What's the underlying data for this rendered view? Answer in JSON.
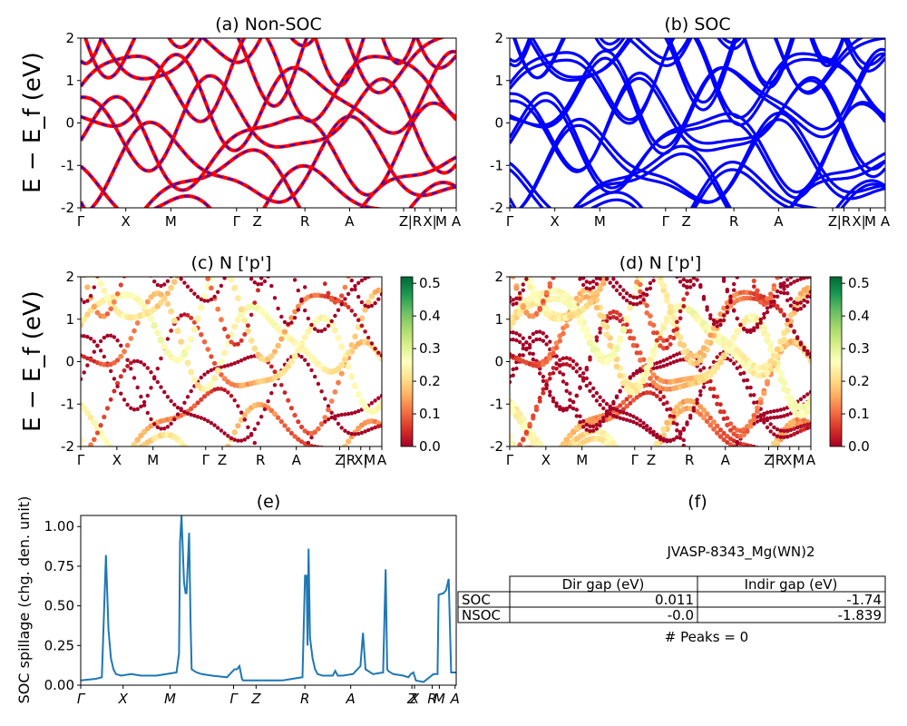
{
  "chart_data": [
    {
      "id": "a",
      "type": "line",
      "title": "(a) Non-SOC",
      "ylabel": "E − E_f (eV)",
      "ylim": [
        -2,
        2
      ],
      "yticks": [
        "-2",
        "-1",
        "0",
        "1",
        "2"
      ],
      "kpath_labels": [
        "Γ",
        "X",
        "M",
        "Γ",
        "Z",
        "R",
        "A",
        "Z",
        "|R",
        "X|",
        "M",
        "A"
      ],
      "series": [
        {
          "color": "#ff0000",
          "style": "solid"
        },
        {
          "color": "#0000ff",
          "style": "dashed"
        }
      ]
    },
    {
      "id": "b",
      "type": "line",
      "title": "(b) SOC",
      "ylim": [
        -2,
        2
      ],
      "yticks": [
        "-2",
        "-1",
        "0",
        "1",
        "2"
      ],
      "kpath_labels": [
        "Γ",
        "X",
        "M",
        "Γ",
        "Z",
        "R",
        "A",
        "Z",
        "|R",
        "X|",
        "M",
        "A"
      ],
      "series": [
        {
          "color": "#0000ff",
          "style": "solid"
        }
      ]
    },
    {
      "id": "c",
      "type": "scatter",
      "title": "(c)  N ['p']",
      "ylabel": "E − E_f (eV)",
      "ylim": [
        -2,
        2
      ],
      "yticks": [
        "-2",
        "-1",
        "0",
        "1",
        "2"
      ],
      "kpath_labels": [
        "Γ",
        "X",
        "M",
        "Γ",
        "Z",
        "R",
        "A",
        "Z",
        "|R",
        "X|",
        "M",
        "A"
      ],
      "colorbar": {
        "cmap": "RdYlGn",
        "range": [
          0.0,
          0.52
        ],
        "ticks": [
          "0.0",
          "0.1",
          "0.2",
          "0.3",
          "0.4",
          "0.5"
        ]
      }
    },
    {
      "id": "d",
      "type": "scatter",
      "title": "(d) N ['p']",
      "ylim": [
        -2,
        2
      ],
      "yticks": [
        "-2",
        "-1",
        "0",
        "1",
        "2"
      ],
      "kpath_labels": [
        "Γ",
        "X",
        "M",
        "Γ",
        "Z",
        "R",
        "A",
        "Z",
        "|R",
        "X|",
        "M",
        "A"
      ],
      "colorbar": {
        "cmap": "RdYlGn",
        "range": [
          0.0,
          0.52
        ],
        "ticks": [
          "0.0",
          "0.1",
          "0.2",
          "0.3",
          "0.4",
          "0.5"
        ]
      }
    },
    {
      "id": "e",
      "type": "line",
      "title": "(e)",
      "ylabel": "SOC spillage (chg. den. unit)",
      "ylim": [
        0,
        1.07
      ],
      "yticks": [
        "0.00",
        "0.25",
        "0.50",
        "0.75",
        "1.00"
      ],
      "xlabels": [
        "Γ",
        "X",
        "M",
        "Γ",
        "Z",
        "R",
        "A",
        "Z",
        "X",
        "R",
        "M",
        "A"
      ],
      "series": [
        {
          "color": "#1f77b4",
          "x": [
            0,
            0.3,
            0.42,
            0.5,
            0.55,
            0.6,
            0.65,
            0.7,
            0.8,
            1.0,
            1.2,
            1.22,
            1.5,
            1.7,
            1.9,
            1.95,
            1.97,
            2.0,
            2.05,
            2.08,
            2.1,
            2.15,
            2.18,
            2.2,
            2.25,
            2.3,
            2.4,
            2.6,
            2.9,
            3.05,
            3.1,
            3.15,
            3.2,
            3.22,
            3.4,
            3.8,
            4.0,
            4.2,
            4.4,
            4.45,
            4.48,
            4.5,
            4.52,
            4.55,
            4.6,
            4.65,
            4.7,
            4.8,
            5.0,
            5.05,
            5.1,
            5.2,
            5.4,
            5.55,
            5.6,
            5.65,
            5.8,
            6.0,
            6.05,
            6.08,
            6.1,
            6.2,
            6.4,
            6.5,
            6.55,
            6.6,
            6.65,
            6.8,
            7.0,
            7.05,
            7.08,
            7.1,
            7.2,
            7.25,
            7.3,
            7.35,
            7.4,
            7.45
          ],
          "y": [
            0.03,
            0.04,
            0.05,
            0.82,
            0.35,
            0.17,
            0.1,
            0.07,
            0.06,
            0.07,
            0.06,
            0.06,
            0.06,
            0.07,
            0.08,
            0.2,
            0.9,
            1.07,
            0.65,
            0.58,
            0.58,
            0.96,
            0.4,
            0.1,
            0.09,
            0.08,
            0.07,
            0.06,
            0.05,
            0.1,
            0.1,
            0.12,
            0.04,
            0.03,
            0.03,
            0.03,
            0.03,
            0.04,
            0.05,
            0.69,
            0.69,
            0.25,
            0.86,
            0.3,
            0.17,
            0.1,
            0.07,
            0.06,
            0.06,
            0.09,
            0.06,
            0.06,
            0.07,
            0.12,
            0.33,
            0.1,
            0.07,
            0.08,
            0.73,
            0.1,
            0.09,
            0.07,
            0.06,
            0.05,
            0.07,
            0.08,
            0.03,
            0.02,
            0.07,
            0.07,
            0.07,
            0.57,
            0.58,
            0.6,
            0.67,
            0.08,
            0.08,
            0.08
          ]
        }
      ]
    }
  ],
  "panel_f": {
    "title": "(f)",
    "subtitle": "JVASP-8343_Mg(WN)2",
    "columns": [
      "Dir gap (eV)",
      "Indir gap (eV)"
    ],
    "rows": [
      {
        "label": "SOC",
        "dir": "0.011",
        "indir": "-1.74"
      },
      {
        "label": "NSOC",
        "dir": "-0.0",
        "indir": "-1.839"
      }
    ],
    "footer": "# Peaks = 0"
  }
}
